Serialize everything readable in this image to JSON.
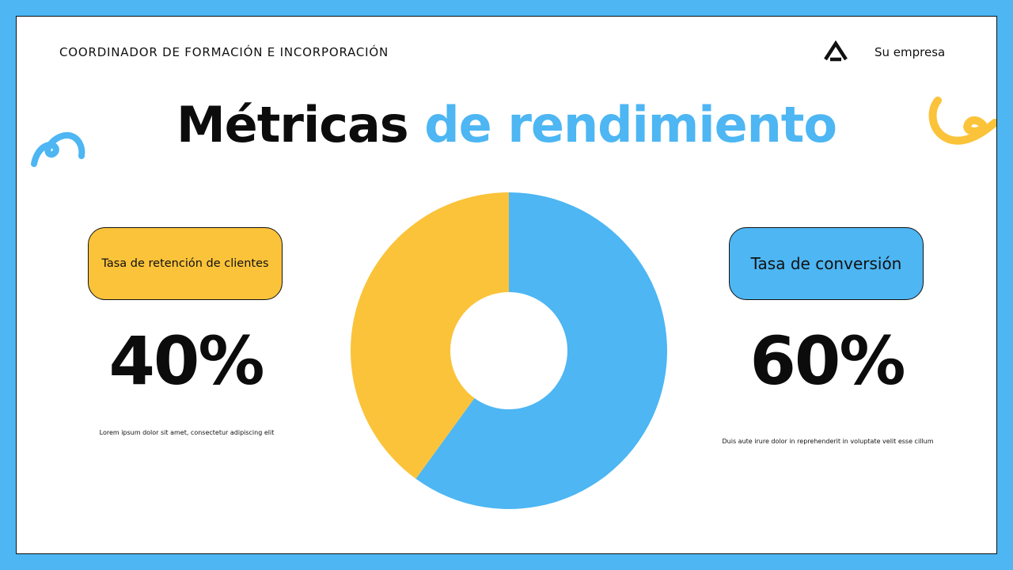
{
  "header": {
    "left_text": "COORDINADOR DE FORMACIÓN E INCORPORACIÓN",
    "company": "Su empresa"
  },
  "title": {
    "part1": "Métricas",
    "part2": "de rendimiento"
  },
  "metrics": {
    "left": {
      "label": "Tasa de retención de clientes",
      "value": "40%",
      "description": "Lorem ipsum dolor sit amet, consectetur adipiscing elit"
    },
    "right": {
      "label": "Tasa de conversión",
      "value": "60%",
      "description": "Duis aute irure dolor in reprehenderit in voluptate velit esse cillum"
    }
  },
  "colors": {
    "background": "#4db6f3",
    "accent_blue": "#4db6f3",
    "accent_yellow": "#fbc33a",
    "text": "#0c0c0c"
  },
  "icons": [
    "logo-icon",
    "squiggle-blue-icon",
    "squiggle-yellow-icon"
  ],
  "chart_data": {
    "type": "pie",
    "donut": true,
    "categories": [
      "Tasa de retención de clientes",
      "Tasa de conversión"
    ],
    "values": [
      40,
      60
    ],
    "colors": [
      "#fbc33a",
      "#4db6f3"
    ]
  }
}
